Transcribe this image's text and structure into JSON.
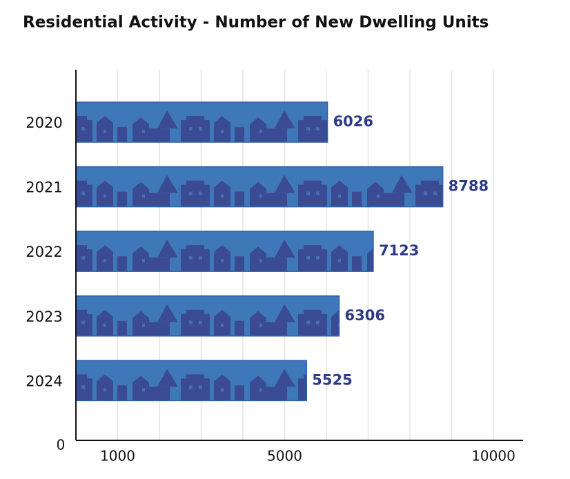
{
  "chart_data": {
    "type": "barh",
    "title": "Residential Activity - Number of New Dwelling Units",
    "categories": [
      "2020",
      "2021",
      "2022",
      "2023",
      "2024"
    ],
    "values": [
      6026,
      8788,
      7123,
      6306,
      5525
    ],
    "color": "#3f78b9",
    "label_color": "#2e3a87",
    "xlim": [
      0,
      10700
    ],
    "xticks": [
      0,
      1000,
      5000,
      10000
    ],
    "xgrid": [
      1000,
      2000,
      3000,
      4000,
      5000,
      6000,
      7000,
      8000,
      9000,
      10000
    ],
    "grid": true
  }
}
